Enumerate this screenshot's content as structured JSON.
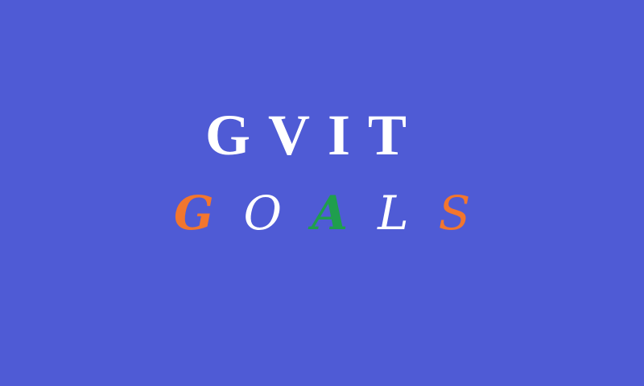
{
  "title": "GVIT",
  "subtitle": {
    "letters": [
      {
        "char": "G",
        "color": "#f2762e"
      },
      {
        "char": "O",
        "color": "#ffffff"
      },
      {
        "char": "A",
        "color": "#1f9e4d"
      },
      {
        "char": "L",
        "color": "#ffffff"
      },
      {
        "char": "S",
        "color": "#f2762e"
      }
    ]
  },
  "colors": {
    "background": "#4f5bd5",
    "title": "#ffffff"
  }
}
